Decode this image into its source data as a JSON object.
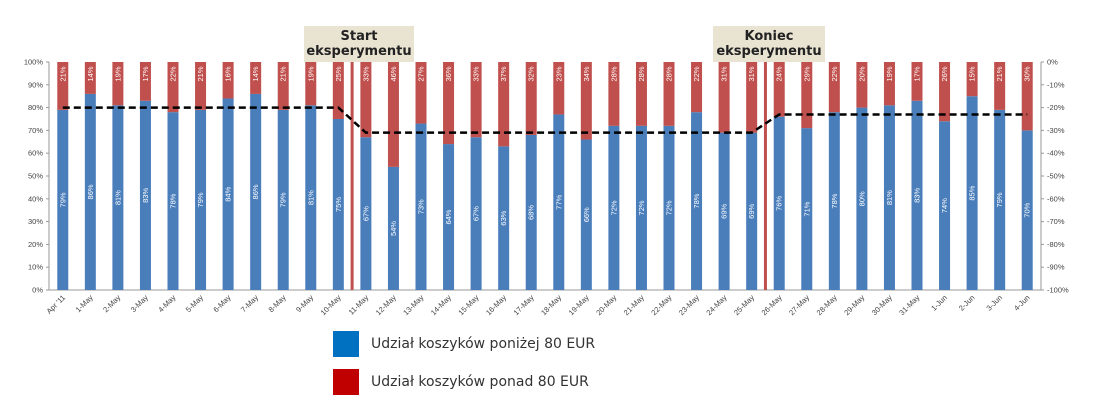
{
  "chart_data": {
    "type": "bar",
    "stacked": true,
    "categories": [
      "Apr '11",
      "1-May",
      "2-May",
      "3-May",
      "4-May",
      "5-May",
      "6-May",
      "7-May",
      "8-May",
      "9-May",
      "10-May",
      "11-May",
      "12-May",
      "13-May",
      "14-May",
      "15-May",
      "16-May",
      "17-May",
      "18-May",
      "19-May",
      "20-May",
      "21-May",
      "22-May",
      "23-May",
      "24-May",
      "25-May",
      "26-May",
      "27-May",
      "28-May",
      "29-May",
      "30-May",
      "31-May",
      "1-Jun",
      "2-Jun",
      "3-Jun",
      "4-Jun"
    ],
    "series": [
      {
        "name": "Udział koszyków poniżej 80 EUR",
        "color": "#4a7ebb",
        "values": [
          79,
          86,
          81,
          83,
          78,
          79,
          84,
          86,
          79,
          81,
          75,
          67,
          54,
          73,
          64,
          67,
          63,
          68,
          77,
          66,
          72,
          72,
          72,
          78,
          69,
          69,
          76,
          71,
          78,
          80,
          81,
          83,
          74,
          85,
          79,
          70
        ]
      },
      {
        "name": "Udział koszyków ponad 80 EUR",
        "color": "#c0504d",
        "values": [
          21,
          14,
          19,
          17,
          22,
          21,
          16,
          14,
          21,
          19,
          25,
          33,
          46,
          27,
          36,
          33,
          37,
          32,
          23,
          34,
          28,
          28,
          28,
          22,
          31,
          31,
          24,
          29,
          22,
          20,
          19,
          17,
          26,
          15,
          21,
          30
        ]
      }
    ],
    "value_labels": {
      "blue": [
        "79%",
        "86%",
        "81%",
        "83%",
        "78%",
        "79%",
        "84%",
        "86%",
        "79%",
        "81%",
        "75%",
        "67%",
        "54%",
        "73%",
        "64%",
        "67%",
        "63%",
        "68%",
        "77%",
        "66%",
        "72%",
        "72%",
        "72%",
        "78%",
        "69%",
        "69%",
        "76%",
        "71%",
        "78%",
        "80%",
        "81%",
        "83%",
        "74%",
        "85%",
        "79%",
        "70%"
      ],
      "red": [
        "21%",
        "14%",
        "19%",
        "17%",
        "22%",
        "21%",
        "16%",
        "14%",
        "21%",
        "19%",
        "25%",
        "33%",
        "46%",
        "27%",
        "36%",
        "33%",
        "37%",
        "32%",
        "23%",
        "34%",
        "28%",
        "28%",
        "28%",
        "22%",
        "31%",
        "31%",
        "24%",
        "29%",
        "22%",
        "20%",
        "19%",
        "17%",
        "26%",
        "15%",
        "21%",
        "30%"
      ]
    },
    "trend_line": {
      "style": "dashed",
      "color": "#000000",
      "right_axis_values": [
        -20,
        -20,
        -20,
        -20,
        -20,
        -20,
        -20,
        -20,
        -20,
        -20,
        -20,
        -31,
        -31,
        -31,
        -31,
        -31,
        -31,
        -31,
        -31,
        -31,
        -31,
        -31,
        -31,
        -31,
        -31,
        -31,
        -23,
        -23,
        -23,
        -23,
        -23,
        -23,
        -23,
        -23,
        -23,
        -23
      ]
    },
    "left_axis": {
      "ticks": [
        "0%",
        "10%",
        "20%",
        "30%",
        "40%",
        "50%",
        "60%",
        "70%",
        "80%",
        "90%",
        "100%"
      ],
      "ylim": [
        0,
        100
      ]
    },
    "right_axis": {
      "ticks": [
        "0%",
        "-10%",
        "-20%",
        "-30%",
        "-40%",
        "-50%",
        "-60%",
        "-70%",
        "-80%",
        "-90%",
        "-100%"
      ],
      "ylim": [
        0,
        -100
      ]
    },
    "markers": [
      {
        "label": "Start eksperymentu",
        "between": [
          "10-May",
          "11-May"
        ],
        "color": "#c0504d"
      },
      {
        "label": "Koniec eksperymentu",
        "between": [
          "25-May",
          "26-May"
        ],
        "color": "#c0504d"
      }
    ],
    "legend_position": "bottom"
  },
  "legend": {
    "items": [
      {
        "label": "Udział koszyków poniżej 80 EUR",
        "color": "#0070c0"
      },
      {
        "label": "Udział koszyków ponad 80 EUR",
        "color": "#c00000"
      }
    ]
  },
  "annotations": {
    "start": {
      "line1": "Start",
      "line2": "eksperymentu"
    },
    "end": {
      "line1": "Koniec",
      "line2": "eksperymentu"
    }
  }
}
